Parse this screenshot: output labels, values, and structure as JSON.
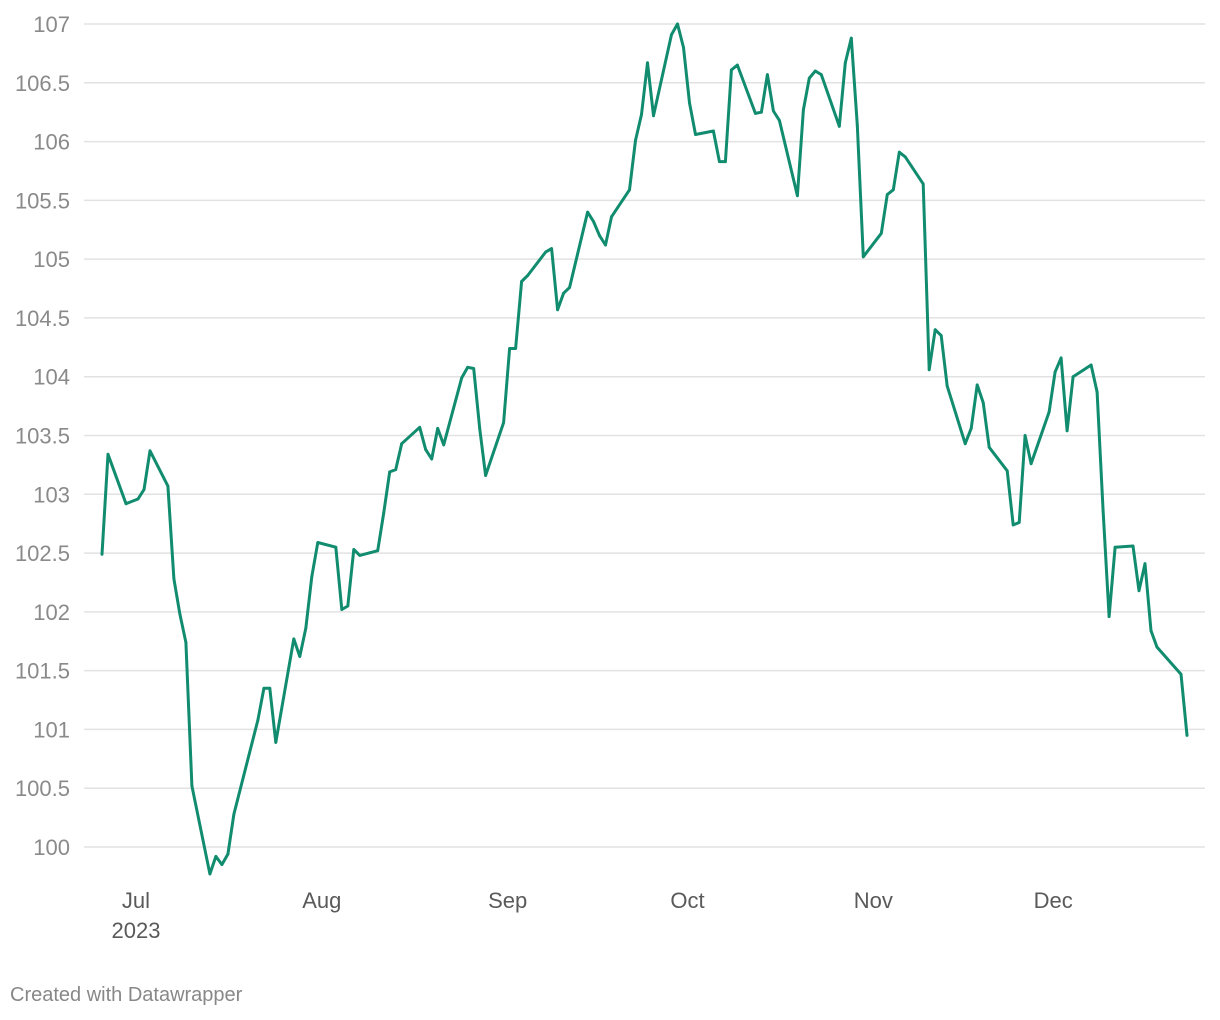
{
  "chart_data": {
    "type": "line",
    "title": "",
    "xlabel": "",
    "ylabel": "",
    "ylim": [
      100,
      107
    ],
    "yticks": [
      "100",
      "100.5",
      "101",
      "101.5",
      "102",
      "102.5",
      "103",
      "103.5",
      "104",
      "104.5",
      "105",
      "105.5",
      "106",
      "106.5",
      "107"
    ],
    "xticks": [
      {
        "date": "2023-07-01",
        "label": "Jul",
        "sublabel": "2023"
      },
      {
        "date": "2023-08-01",
        "label": "Aug",
        "sublabel": ""
      },
      {
        "date": "2023-09-01",
        "label": "Sep",
        "sublabel": ""
      },
      {
        "date": "2023-10-01",
        "label": "Oct",
        "sublabel": ""
      },
      {
        "date": "2023-11-01",
        "label": "Nov",
        "sublabel": ""
      },
      {
        "date": "2023-12-01",
        "label": "Dec",
        "sublabel": ""
      }
    ],
    "grid": true,
    "line_color": "#118c6f",
    "grid_color": "#e2e2e2",
    "series": [
      {
        "x": [
          "2023-06-29",
          "2023-06-30",
          "2023-07-03",
          "2023-07-05",
          "2023-07-06",
          "2023-07-07",
          "2023-07-10",
          "2023-07-11",
          "2023-07-12",
          "2023-07-13",
          "2023-07-14",
          "2023-07-17",
          "2023-07-18",
          "2023-07-19",
          "2023-07-20",
          "2023-07-21",
          "2023-07-24",
          "2023-07-25",
          "2023-07-26",
          "2023-07-27",
          "2023-07-28",
          "2023-07-31",
          "2023-08-01",
          "2023-08-02",
          "2023-08-03",
          "2023-08-04",
          "2023-08-07",
          "2023-08-08",
          "2023-08-09",
          "2023-08-10",
          "2023-08-11",
          "2023-08-14",
          "2023-08-15",
          "2023-08-16",
          "2023-08-17",
          "2023-08-18",
          "2023-08-21",
          "2023-08-22",
          "2023-08-23",
          "2023-08-24",
          "2023-08-25",
          "2023-08-28",
          "2023-08-29",
          "2023-08-30",
          "2023-08-31",
          "2023-09-01",
          "2023-09-04",
          "2023-09-05",
          "2023-09-06",
          "2023-09-07",
          "2023-09-08",
          "2023-09-11",
          "2023-09-12",
          "2023-09-13",
          "2023-09-14",
          "2023-09-15",
          "2023-09-18",
          "2023-09-19",
          "2023-09-20",
          "2023-09-21",
          "2023-09-22",
          "2023-09-25",
          "2023-09-26",
          "2023-09-27",
          "2023-09-28",
          "2023-09-29",
          "2023-10-02",
          "2023-10-03",
          "2023-10-04",
          "2023-10-05",
          "2023-10-06",
          "2023-10-09",
          "2023-10-10",
          "2023-10-11",
          "2023-10-12",
          "2023-10-13",
          "2023-10-16",
          "2023-10-17",
          "2023-10-18",
          "2023-10-19",
          "2023-10-20",
          "2023-10-23",
          "2023-10-24",
          "2023-10-25",
          "2023-10-26",
          "2023-10-27",
          "2023-10-30",
          "2023-10-31",
          "2023-11-01",
          "2023-11-02",
          "2023-11-03",
          "2023-11-06",
          "2023-11-07",
          "2023-11-08",
          "2023-11-09",
          "2023-11-10",
          "2023-11-13",
          "2023-11-14",
          "2023-11-15",
          "2023-11-16",
          "2023-11-17",
          "2023-11-20",
          "2023-11-21",
          "2023-11-22",
          "2023-11-23",
          "2023-11-24",
          "2023-11-27",
          "2023-11-28",
          "2023-11-29",
          "2023-11-30",
          "2023-12-01",
          "2023-12-04",
          "2023-12-05",
          "2023-12-06",
          "2023-12-07",
          "2023-12-08",
          "2023-12-11",
          "2023-12-12",
          "2023-12-13",
          "2023-12-14",
          "2023-12-15",
          "2023-12-18",
          "2023-12-19",
          "2023-12-20",
          "2023-12-21",
          "2023-12-22",
          "2023-12-26",
          "2023-12-27"
        ],
        "y": [
          102.49,
          103.34,
          102.92,
          102.96,
          103.04,
          103.37,
          103.07,
          102.28,
          101.98,
          101.74,
          100.52,
          99.77,
          99.92,
          99.85,
          99.94,
          100.28,
          100.88,
          101.08,
          101.35,
          101.35,
          100.89,
          101.77,
          101.62,
          101.86,
          102.3,
          102.59,
          102.55,
          102.02,
          102.05,
          102.53,
          102.48,
          102.52,
          102.84,
          103.19,
          103.21,
          103.43,
          103.57,
          103.38,
          103.3,
          103.56,
          103.42,
          103.99,
          104.08,
          104.07,
          103.56,
          103.16,
          103.61,
          104.24,
          104.24,
          104.81,
          104.86,
          105.06,
          105.09,
          104.57,
          104.71,
          104.76,
          105.4,
          105.32,
          105.2,
          105.12,
          105.36,
          105.59,
          106.01,
          106.23,
          106.67,
          106.22,
          106.91,
          107.0,
          106.8,
          106.33,
          106.06,
          106.09,
          105.83,
          105.83,
          106.61,
          106.65,
          106.24,
          106.25,
          106.57,
          106.26,
          106.18,
          105.54,
          106.27,
          106.54,
          106.6,
          106.57,
          106.13,
          106.67,
          106.88,
          106.14,
          105.02,
          105.22,
          105.55,
          105.59,
          105.91,
          105.87,
          105.64,
          104.06,
          104.4,
          104.35,
          103.92,
          103.43,
          103.56,
          103.93,
          103.78,
          103.4,
          103.2,
          102.74,
          102.76,
          103.5,
          103.26,
          103.7,
          104.04,
          104.16,
          103.54,
          104.0,
          104.1,
          103.87,
          102.86,
          101.96,
          102.55,
          102.56,
          102.18,
          102.41,
          101.84,
          101.7,
          101.47,
          100.95
        ]
      }
    ]
  },
  "footer": {
    "credit": "Created with Datawrapper"
  }
}
